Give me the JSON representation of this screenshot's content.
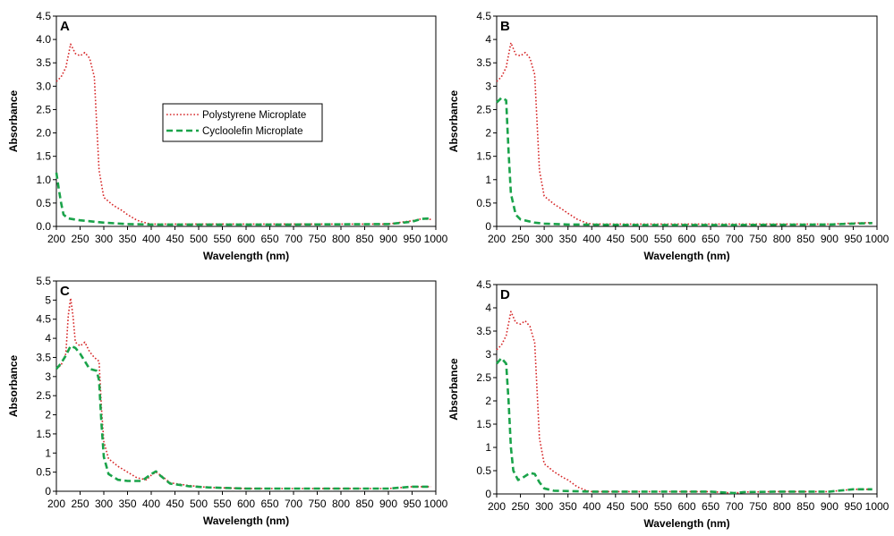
{
  "legend": {
    "entries": [
      {
        "label": "Polystyrene Microplate",
        "color": "#d62728",
        "dash": "dotted"
      },
      {
        "label": "Cycloolefin Microplate",
        "color": "#1aa34a",
        "dash": "dashed"
      }
    ]
  },
  "chart_data": [
    {
      "panel": "A",
      "type": "line",
      "xlabel": "Wavelength (nm)",
      "ylabel": "Absorbance",
      "xlim": [
        200,
        1000
      ],
      "ylim": [
        0,
        4.5
      ],
      "xticks": [
        200,
        250,
        300,
        350,
        400,
        450,
        500,
        550,
        600,
        650,
        700,
        750,
        800,
        850,
        900,
        950,
        1000
      ],
      "yticks": [
        "0.0",
        "0.5",
        "1.0",
        "1.5",
        "2.0",
        "2.5",
        "3.0",
        "3.5",
        "4.0",
        "4.5"
      ],
      "legend_location": "center-left",
      "series": [
        {
          "name": "Polystyrene Microplate",
          "points": [
            [
              200,
              3.1
            ],
            [
              210,
              3.2
            ],
            [
              220,
              3.4
            ],
            [
              230,
              3.9
            ],
            [
              240,
              3.7
            ],
            [
              250,
              3.65
            ],
            [
              260,
              3.72
            ],
            [
              270,
              3.6
            ],
            [
              280,
              3.2
            ],
            [
              285,
              2.2
            ],
            [
              290,
              1.2
            ],
            [
              300,
              0.62
            ],
            [
              320,
              0.45
            ],
            [
              340,
              0.33
            ],
            [
              350,
              0.25
            ],
            [
              370,
              0.13
            ],
            [
              390,
              0.07
            ],
            [
              400,
              0.05
            ],
            [
              500,
              0.05
            ],
            [
              700,
              0.05
            ],
            [
              900,
              0.05
            ],
            [
              950,
              0.12
            ],
            [
              970,
              0.16
            ],
            [
              990,
              0.15
            ]
          ]
        },
        {
          "name": "Cycloolefin Microplate",
          "points": [
            [
              200,
              1.15
            ],
            [
              205,
              0.8
            ],
            [
              210,
              0.5
            ],
            [
              215,
              0.25
            ],
            [
              225,
              0.17
            ],
            [
              250,
              0.13
            ],
            [
              300,
              0.08
            ],
            [
              350,
              0.05
            ],
            [
              400,
              0.04
            ],
            [
              500,
              0.04
            ],
            [
              700,
              0.04
            ],
            [
              900,
              0.05
            ],
            [
              950,
              0.1
            ],
            [
              970,
              0.16
            ],
            [
              990,
              0.17
            ]
          ]
        }
      ]
    },
    {
      "panel": "B",
      "type": "line",
      "xlabel": "Wavelength (nm)",
      "ylabel": "Absorbance",
      "xlim": [
        200,
        1000
      ],
      "ylim": [
        0,
        4.5
      ],
      "xticks": [
        200,
        250,
        300,
        350,
        400,
        450,
        500,
        550,
        600,
        650,
        700,
        750,
        800,
        850,
        900,
        950,
        1000
      ],
      "yticks": [
        "0",
        "0.5",
        "1",
        "1.5",
        "2",
        "2.5",
        "3",
        "3.5",
        "4",
        "4.5"
      ],
      "series": [
        {
          "name": "Polystyrene Microplate",
          "points": [
            [
              200,
              3.1
            ],
            [
              210,
              3.2
            ],
            [
              220,
              3.4
            ],
            [
              230,
              3.93
            ],
            [
              240,
              3.68
            ],
            [
              250,
              3.65
            ],
            [
              260,
              3.72
            ],
            [
              270,
              3.6
            ],
            [
              280,
              3.25
            ],
            [
              285,
              2.2
            ],
            [
              290,
              1.2
            ],
            [
              300,
              0.65
            ],
            [
              320,
              0.48
            ],
            [
              340,
              0.35
            ],
            [
              350,
              0.28
            ],
            [
              370,
              0.15
            ],
            [
              390,
              0.07
            ],
            [
              400,
              0.05
            ],
            [
              500,
              0.05
            ],
            [
              700,
              0.05
            ],
            [
              900,
              0.05
            ],
            [
              950,
              0.07
            ],
            [
              990,
              0.08
            ]
          ]
        },
        {
          "name": "Cycloolefin Microplate",
          "points": [
            [
              200,
              2.65
            ],
            [
              210,
              2.75
            ],
            [
              220,
              2.7
            ],
            [
              225,
              1.6
            ],
            [
              230,
              0.7
            ],
            [
              240,
              0.25
            ],
            [
              250,
              0.15
            ],
            [
              280,
              0.08
            ],
            [
              300,
              0.06
            ],
            [
              350,
              0.04
            ],
            [
              500,
              0.03
            ],
            [
              700,
              0.03
            ],
            [
              900,
              0.04
            ],
            [
              950,
              0.06
            ],
            [
              990,
              0.07
            ]
          ]
        }
      ]
    },
    {
      "panel": "C",
      "type": "line",
      "xlabel": "Wavelength (nm)",
      "ylabel": "Absorbance",
      "xlim": [
        200,
        1000
      ],
      "ylim": [
        0,
        5.5
      ],
      "xticks": [
        200,
        250,
        300,
        350,
        400,
        450,
        500,
        550,
        600,
        650,
        700,
        750,
        800,
        850,
        900,
        950,
        1000
      ],
      "yticks": [
        "0",
        "0.5",
        "1",
        "1.5",
        "2",
        "2.5",
        "3",
        "3.5",
        "4",
        "4.5",
        "5",
        "5.5"
      ],
      "series": [
        {
          "name": "Polystyrene Microplate",
          "points": [
            [
              200,
              3.2
            ],
            [
              210,
              3.3
            ],
            [
              220,
              3.6
            ],
            [
              225,
              4.6
            ],
            [
              230,
              5.05
            ],
            [
              235,
              4.6
            ],
            [
              240,
              3.9
            ],
            [
              250,
              3.8
            ],
            [
              260,
              3.9
            ],
            [
              270,
              3.65
            ],
            [
              280,
              3.5
            ],
            [
              290,
              3.4
            ],
            [
              295,
              2.2
            ],
            [
              300,
              1.3
            ],
            [
              310,
              0.85
            ],
            [
              330,
              0.65
            ],
            [
              350,
              0.5
            ],
            [
              370,
              0.35
            ],
            [
              390,
              0.3
            ],
            [
              400,
              0.42
            ],
            [
              410,
              0.5
            ],
            [
              420,
              0.42
            ],
            [
              440,
              0.22
            ],
            [
              480,
              0.15
            ],
            [
              520,
              0.1
            ],
            [
              600,
              0.07
            ],
            [
              700,
              0.07
            ],
            [
              900,
              0.07
            ],
            [
              950,
              0.12
            ],
            [
              990,
              0.12
            ]
          ]
        },
        {
          "name": "Cycloolefin Microplate",
          "points": [
            [
              200,
              3.2
            ],
            [
              210,
              3.35
            ],
            [
              220,
              3.55
            ],
            [
              230,
              3.8
            ],
            [
              240,
              3.75
            ],
            [
              250,
              3.6
            ],
            [
              260,
              3.4
            ],
            [
              270,
              3.2
            ],
            [
              285,
              3.15
            ],
            [
              290,
              2.9
            ],
            [
              295,
              1.8
            ],
            [
              300,
              0.9
            ],
            [
              310,
              0.45
            ],
            [
              330,
              0.3
            ],
            [
              350,
              0.27
            ],
            [
              380,
              0.27
            ],
            [
              400,
              0.45
            ],
            [
              410,
              0.52
            ],
            [
              420,
              0.4
            ],
            [
              440,
              0.2
            ],
            [
              480,
              0.13
            ],
            [
              520,
              0.1
            ],
            [
              600,
              0.07
            ],
            [
              700,
              0.07
            ],
            [
              900,
              0.07
            ],
            [
              950,
              0.12
            ],
            [
              990,
              0.12
            ]
          ]
        }
      ]
    },
    {
      "panel": "D",
      "type": "line",
      "xlabel": "Wavelength (nm)",
      "ylabel": "Absorbance",
      "xlim": [
        200,
        1000
      ],
      "ylim": [
        0,
        4.5
      ],
      "xticks": [
        200,
        250,
        300,
        350,
        400,
        450,
        500,
        550,
        600,
        650,
        700,
        750,
        800,
        850,
        900,
        950,
        1000
      ],
      "yticks": [
        "0",
        "0.5",
        "1",
        "1.5",
        "2",
        "2.5",
        "3",
        "3.5",
        "4",
        "4.5"
      ],
      "series": [
        {
          "name": "Polystyrene Microplate",
          "points": [
            [
              200,
              3.1
            ],
            [
              210,
              3.2
            ],
            [
              220,
              3.4
            ],
            [
              230,
              3.92
            ],
            [
              240,
              3.68
            ],
            [
              250,
              3.65
            ],
            [
              260,
              3.72
            ],
            [
              270,
              3.6
            ],
            [
              280,
              3.25
            ],
            [
              285,
              2.2
            ],
            [
              290,
              1.2
            ],
            [
              300,
              0.65
            ],
            [
              320,
              0.48
            ],
            [
              340,
              0.35
            ],
            [
              350,
              0.3
            ],
            [
              370,
              0.15
            ],
            [
              390,
              0.07
            ],
            [
              400,
              0.05
            ],
            [
              500,
              0.05
            ],
            [
              650,
              0.05
            ],
            [
              680,
              0.03
            ],
            [
              700,
              0.02
            ],
            [
              720,
              0.04
            ],
            [
              800,
              0.05
            ],
            [
              900,
              0.05
            ],
            [
              950,
              0.1
            ],
            [
              990,
              0.1
            ]
          ]
        },
        {
          "name": "Cycloolefin Microplate",
          "points": [
            [
              200,
              2.8
            ],
            [
              210,
              2.92
            ],
            [
              220,
              2.8
            ],
            [
              225,
              2.0
            ],
            [
              230,
              1.0
            ],
            [
              235,
              0.5
            ],
            [
              245,
              0.3
            ],
            [
              255,
              0.35
            ],
            [
              270,
              0.45
            ],
            [
              280,
              0.43
            ],
            [
              290,
              0.25
            ],
            [
              300,
              0.12
            ],
            [
              320,
              0.07
            ],
            [
              400,
              0.05
            ],
            [
              500,
              0.05
            ],
            [
              650,
              0.05
            ],
            [
              680,
              0.03
            ],
            [
              700,
              0.02
            ],
            [
              720,
              0.04
            ],
            [
              800,
              0.05
            ],
            [
              900,
              0.05
            ],
            [
              950,
              0.1
            ],
            [
              990,
              0.1
            ]
          ]
        }
      ]
    }
  ]
}
